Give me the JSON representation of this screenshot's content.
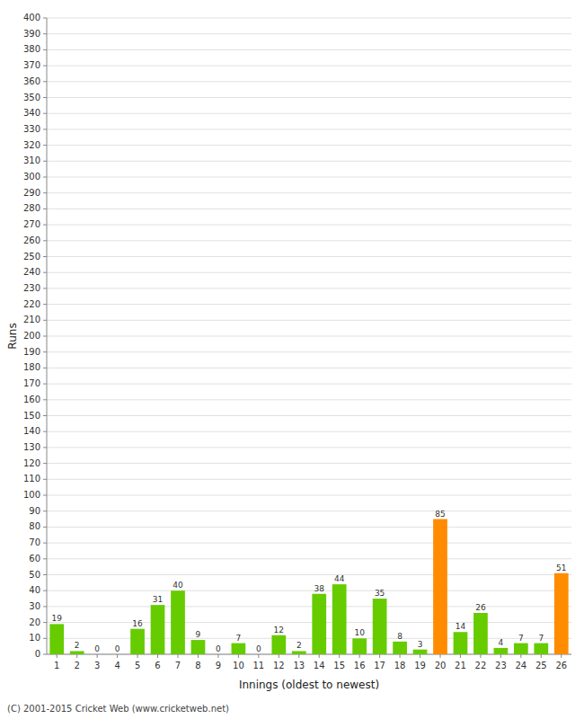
{
  "chart_data": {
    "type": "bar",
    "categories": [
      "1",
      "2",
      "3",
      "4",
      "5",
      "6",
      "7",
      "8",
      "9",
      "10",
      "11",
      "12",
      "13",
      "14",
      "15",
      "16",
      "17",
      "18",
      "19",
      "20",
      "21",
      "22",
      "23",
      "24",
      "25",
      "26"
    ],
    "values": [
      19,
      2,
      0,
      0,
      16,
      31,
      40,
      9,
      0,
      7,
      0,
      12,
      2,
      38,
      44,
      10,
      35,
      8,
      3,
      85,
      14,
      26,
      4,
      7,
      7,
      51
    ],
    "colors": [
      "#66cc00",
      "#66cc00",
      "#66cc00",
      "#66cc00",
      "#66cc00",
      "#66cc00",
      "#66cc00",
      "#66cc00",
      "#66cc00",
      "#66cc00",
      "#66cc00",
      "#66cc00",
      "#66cc00",
      "#66cc00",
      "#66cc00",
      "#66cc00",
      "#66cc00",
      "#66cc00",
      "#66cc00",
      "#ff8c00",
      "#66cc00",
      "#66cc00",
      "#66cc00",
      "#66cc00",
      "#66cc00",
      "#ff8c00"
    ],
    "xlabel": "Innings (oldest to newest)",
    "ylabel": "Runs",
    "ylim": [
      0,
      400
    ],
    "yticks": [
      0,
      10,
      20,
      30,
      40,
      50,
      60,
      70,
      80,
      90,
      100,
      110,
      120,
      130,
      140,
      150,
      160,
      170,
      180,
      190,
      200,
      210,
      220,
      230,
      240,
      250,
      260,
      270,
      280,
      290,
      300,
      310,
      320,
      330,
      340,
      350,
      360,
      370,
      380,
      390,
      400
    ],
    "grid": true,
    "data_labels": true,
    "footer": "(C) 2001-2015 Cricket Web (www.cricketweb.net)"
  }
}
